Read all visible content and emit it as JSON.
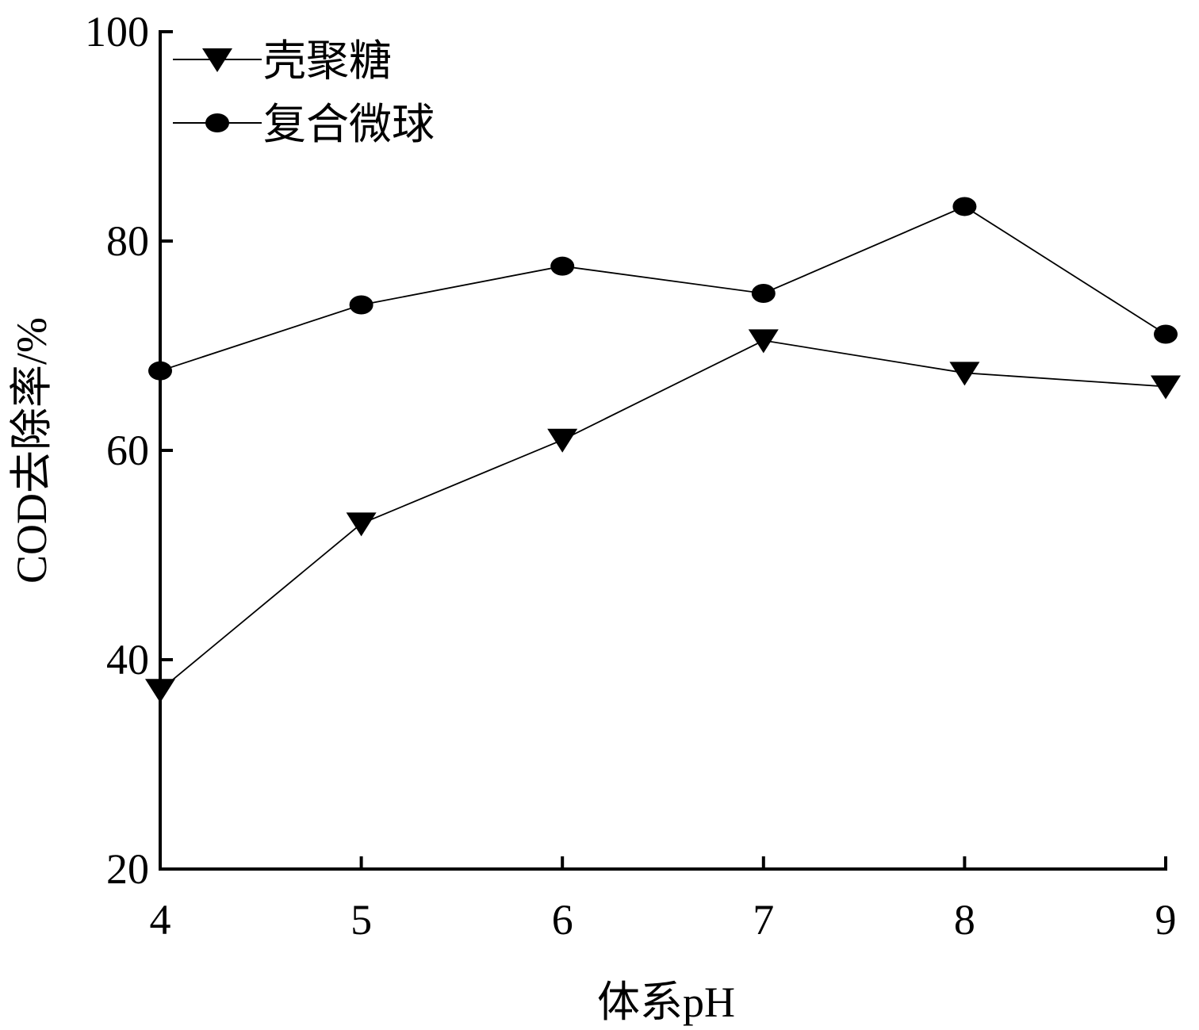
{
  "chart_data": {
    "type": "line",
    "title": "",
    "xlabel": "体系pH",
    "ylabel": "COD去除率/%",
    "x": [
      4,
      5,
      6,
      7,
      8,
      9
    ],
    "xlim": [
      4,
      9
    ],
    "ylim": [
      20,
      100
    ],
    "xticks": [
      "4",
      "5",
      "6",
      "7",
      "8",
      "9"
    ],
    "yticks": [
      "20",
      "40",
      "60",
      "80",
      "100"
    ],
    "grid": false,
    "legend_position": "top-left",
    "series": [
      {
        "name": "壳聚糖",
        "marker": "triangle-down",
        "color": "#000000",
        "values": [
          37.1,
          53.0,
          61.0,
          70.5,
          67.4,
          66.1
        ]
      },
      {
        "name": "复合微球",
        "marker": "circle",
        "color": "#000000",
        "values": [
          67.6,
          73.9,
          77.6,
          75.0,
          83.3,
          71.1
        ]
      }
    ]
  }
}
